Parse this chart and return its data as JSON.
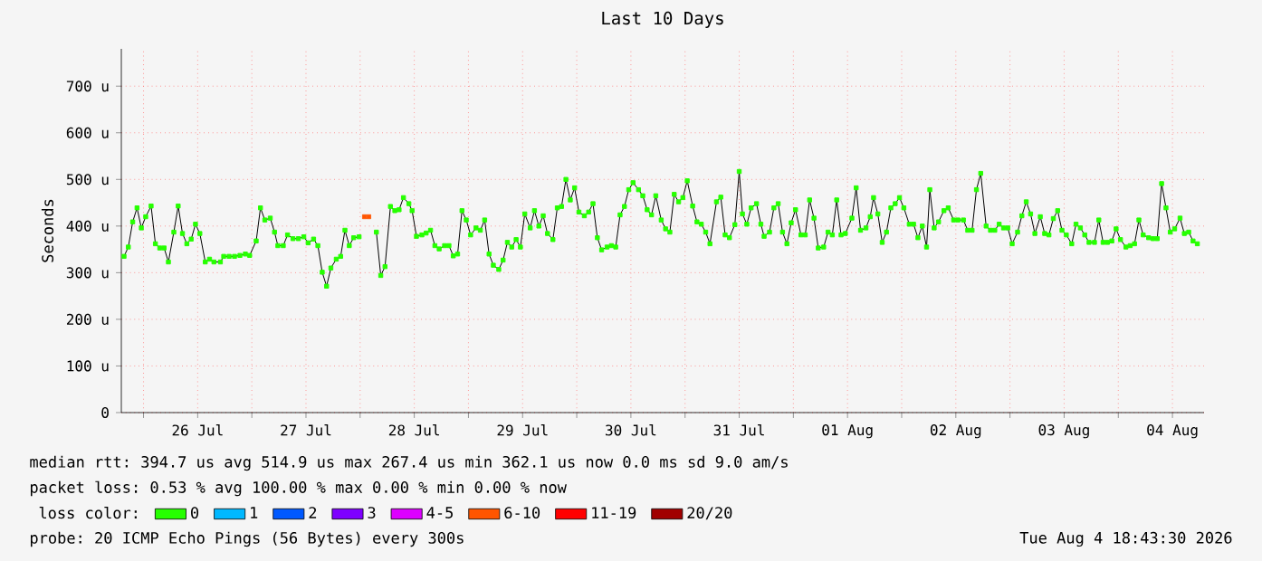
{
  "chart_data": {
    "type": "line",
    "title": "Last 10 Days",
    "ylabel": "Seconds",
    "xlim": [
      "2026-07-25T19:05",
      "2026-08-04T19:00"
    ],
    "ylim": [
      0,
      780
    ],
    "xticks": [
      {
        "value": "2026-07-26",
        "label": null
      },
      {
        "value": "2026-07-26T12:00",
        "label": "26 Jul"
      },
      {
        "value": "2026-07-27",
        "label": null
      },
      {
        "value": "2026-07-27T12:00",
        "label": "27 Jul"
      },
      {
        "value": "2026-07-28",
        "label": null
      },
      {
        "value": "2026-07-28T12:00",
        "label": "28 Jul"
      },
      {
        "value": "2026-07-29",
        "label": null
      },
      {
        "value": "2026-07-29T12:00",
        "label": "29 Jul"
      },
      {
        "value": "2026-07-30",
        "label": null
      },
      {
        "value": "2026-07-30T12:00",
        "label": "30 Jul"
      },
      {
        "value": "2026-07-31",
        "label": null
      },
      {
        "value": "2026-07-31T12:00",
        "label": "31 Jul"
      },
      {
        "value": "2026-08-01",
        "label": null
      },
      {
        "value": "2026-08-01T12:00",
        "label": "01 Aug"
      },
      {
        "value": "2026-08-02",
        "label": null
      },
      {
        "value": "2026-08-02T12:00",
        "label": "02 Aug"
      },
      {
        "value": "2026-08-03",
        "label": null
      },
      {
        "value": "2026-08-03T12:00",
        "label": "03 Aug"
      },
      {
        "value": "2026-08-04",
        "label": null
      },
      {
        "value": "2026-08-04T12:00",
        "label": "04 Aug"
      }
    ],
    "yticks": [
      0,
      {
        "value": 100,
        "label": "100 u"
      },
      {
        "value": 200,
        "label": "200 u"
      },
      {
        "value": 300,
        "label": "300 u"
      },
      {
        "value": 400,
        "label": "400 u"
      },
      {
        "value": 500,
        "label": "500 u"
      },
      {
        "value": 600,
        "label": "600 u"
      },
      {
        "value": 700,
        "label": "700 u"
      }
    ],
    "grid": true,
    "legend": "bottom",
    "legend_title": "loss color:",
    "marker": "square",
    "line_style": "solid",
    "series": [
      {
        "name": "0",
        "color": "#26ff00",
        "x": [
          "2026-07-25T19:41",
          "2026-07-25T20:38",
          "2026-07-25T21:36",
          "2026-07-25T22:34",
          "2026-07-25T23:31",
          "2026-07-26T00:29",
          "2026-07-26T01:41",
          "2026-07-26T02:38",
          "2026-07-26T03:36",
          "2026-07-26T04:34",
          "2026-07-26T05:31",
          "2026-07-26T06:43",
          "2026-07-26T07:41",
          "2026-07-26T08:38",
          "2026-07-26T09:36",
          "2026-07-26T10:34",
          "2026-07-26T11:31",
          "2026-07-26T12:29",
          "2026-07-26T13:41",
          "2026-07-26T14:38",
          "2026-07-26T15:36",
          "2026-07-26T17:02",
          "2026-07-26T17:46",
          "2026-07-26T18:58",
          "2026-07-26T20:10",
          "2026-07-26T21:22",
          "2026-07-26T22:34",
          "2026-07-26T23:31",
          "2026-07-27T00:58",
          "2026-07-27T01:55",
          "2026-07-27T02:53",
          "2026-07-27T04:05",
          "2026-07-27T05:02",
          "2026-07-27T05:46",
          "2026-07-27T06:58",
          "2026-07-27T07:55",
          "2026-07-27T09:07",
          "2026-07-27T10:19",
          "2026-07-27T11:31",
          "2026-07-27T12:29",
          "2026-07-27T13:41",
          "2026-07-27T14:38",
          "2026-07-27T15:36",
          "2026-07-27T16:34",
          "2026-07-27T17:31",
          "2026-07-27T18:43",
          "2026-07-27T19:41",
          "2026-07-27T20:38",
          "2026-07-27T21:36",
          "2026-07-27T22:34",
          "2026-07-27T23:46",
          "2026-07-28T00:58",
          "2026-07-28T01:55",
          "2026-07-28T03:36",
          "2026-07-28T04:34",
          "2026-07-28T05:31",
          "2026-07-28T06:43",
          "2026-07-28T07:41",
          "2026-07-28T08:38",
          "2026-07-28T09:36",
          "2026-07-28T10:48",
          "2026-07-28T11:31",
          "2026-07-28T12:29",
          "2026-07-28T13:41",
          "2026-07-28T14:38",
          "2026-07-28T15:36",
          "2026-07-28T16:34",
          "2026-07-28T17:31",
          "2026-07-28T18:43",
          "2026-07-28T19:41",
          "2026-07-28T20:38",
          "2026-07-28T21:36",
          "2026-07-28T22:34",
          "2026-07-28T23:31",
          "2026-07-29T00:29",
          "2026-07-29T01:41",
          "2026-07-29T02:38",
          "2026-07-29T03:36",
          "2026-07-29T04:34",
          "2026-07-29T05:31",
          "2026-07-29T06:43",
          "2026-07-29T07:41",
          "2026-07-29T08:38",
          "2026-07-29T09:36",
          "2026-07-29T10:34",
          "2026-07-29T11:31",
          "2026-07-29T12:29",
          "2026-07-29T13:41",
          "2026-07-29T14:38",
          "2026-07-29T15:36",
          "2026-07-29T16:34",
          "2026-07-29T17:31",
          "2026-07-29T18:43",
          "2026-07-29T19:41",
          "2026-07-29T20:38",
          "2026-07-29T21:36",
          "2026-07-29T22:34",
          "2026-07-29T23:31",
          "2026-07-30T00:29",
          "2026-07-30T01:41",
          "2026-07-30T02:38",
          "2026-07-30T03:36",
          "2026-07-30T04:34",
          "2026-07-30T05:31",
          "2026-07-30T06:43",
          "2026-07-30T07:41",
          "2026-07-30T08:38",
          "2026-07-30T09:36",
          "2026-07-30T10:34",
          "2026-07-30T11:31",
          "2026-07-30T12:29",
          "2026-07-30T13:41",
          "2026-07-30T14:38",
          "2026-07-30T15:36",
          "2026-07-30T16:34",
          "2026-07-30T17:31",
          "2026-07-30T18:43",
          "2026-07-30T19:41",
          "2026-07-30T20:38",
          "2026-07-30T21:36",
          "2026-07-30T22:34",
          "2026-07-30T23:31",
          "2026-07-31T00:29",
          "2026-07-31T01:41",
          "2026-07-31T02:38",
          "2026-07-31T03:36",
          "2026-07-31T04:34",
          "2026-07-31T05:31",
          "2026-07-31T06:58",
          "2026-07-31T07:55",
          "2026-07-31T08:53",
          "2026-07-31T09:50",
          "2026-07-31T11:02",
          "2026-07-31T12:00",
          "2026-07-31T12:43",
          "2026-07-31T13:41",
          "2026-07-31T14:38",
          "2026-07-31T15:50",
          "2026-07-31T16:48",
          "2026-07-31T17:31",
          "2026-07-31T18:43",
          "2026-07-31T19:41",
          "2026-07-31T20:38",
          "2026-07-31T21:36",
          "2026-07-31T22:34",
          "2026-07-31T23:31",
          "2026-08-01T00:29",
          "2026-08-01T01:41",
          "2026-08-01T02:38",
          "2026-08-01T03:36",
          "2026-08-01T04:34",
          "2026-08-01T05:31",
          "2026-08-01T06:43",
          "2026-08-01T07:41",
          "2026-08-01T08:38",
          "2026-08-01T09:36",
          "2026-08-01T10:34",
          "2026-08-01T11:31",
          "2026-08-01T12:58",
          "2026-08-01T13:55",
          "2026-08-01T14:53",
          "2026-08-01T16:05",
          "2026-08-01T17:02",
          "2026-08-01T17:46",
          "2026-08-01T18:43",
          "2026-08-01T19:41",
          "2026-08-01T20:38",
          "2026-08-01T21:36",
          "2026-08-01T22:34",
          "2026-08-01T23:31",
          "2026-08-02T00:29",
          "2026-08-02T01:41",
          "2026-08-02T02:38",
          "2026-08-02T03:36",
          "2026-08-02T04:34",
          "2026-08-02T05:31",
          "2026-08-02T06:14",
          "2026-08-02T07:12",
          "2026-08-02T08:10",
          "2026-08-02T09:22",
          "2026-08-02T10:19",
          "2026-08-02T11:31",
          "2026-08-02T12:29",
          "2026-08-02T13:41",
          "2026-08-02T14:38",
          "2026-08-02T15:36",
          "2026-08-02T16:34",
          "2026-08-02T17:31",
          "2026-08-02T18:43",
          "2026-08-02T19:41",
          "2026-08-02T20:38",
          "2026-08-02T21:36",
          "2026-08-02T22:34",
          "2026-08-02T23:31",
          "2026-08-03T00:29",
          "2026-08-03T01:41",
          "2026-08-03T02:38",
          "2026-08-03T03:36",
          "2026-08-03T04:34",
          "2026-08-03T05:31",
          "2026-08-03T06:43",
          "2026-08-03T07:41",
          "2026-08-03T08:38",
          "2026-08-03T09:36",
          "2026-08-03T10:34",
          "2026-08-03T11:31",
          "2026-08-03T12:29",
          "2026-08-03T13:41",
          "2026-08-03T14:38",
          "2026-08-03T15:36",
          "2026-08-03T16:34",
          "2026-08-03T17:31",
          "2026-08-03T18:43",
          "2026-08-03T19:41",
          "2026-08-03T20:38",
          "2026-08-03T21:36",
          "2026-08-03T22:34",
          "2026-08-03T23:31",
          "2026-08-04T00:29",
          "2026-08-04T01:41",
          "2026-08-04T02:38",
          "2026-08-04T03:36",
          "2026-08-04T04:34",
          "2026-08-04T05:31",
          "2026-08-04T06:43",
          "2026-08-04T07:41",
          "2026-08-04T08:38",
          "2026-08-04T09:36",
          "2026-08-04T10:34",
          "2026-08-04T11:31",
          "2026-08-04T12:29",
          "2026-08-04T13:41",
          "2026-08-04T14:38",
          "2026-08-04T15:36",
          "2026-08-04T16:34",
          "2026-08-04T17:31"
        ],
        "values": [
          335,
          355,
          409,
          439,
          396,
          420,
          443,
          362,
          353,
          353,
          323,
          387,
          443,
          384,
          362,
          372,
          404,
          384,
          323,
          329,
          323,
          323,
          335,
          335,
          335,
          337,
          340,
          337,
          368,
          439,
          413,
          417,
          387,
          358,
          358,
          381,
          373,
          373,
          377,
          364,
          372,
          358,
          301,
          271,
          310,
          329,
          335,
          391,
          358,
          375,
          377,
          null,
          null,
          387,
          294,
          313,
          442,
          433,
          435,
          461,
          448,
          433,
          378,
          381,
          385,
          391,
          358,
          351,
          358,
          358,
          336,
          340,
          433,
          413,
          381,
          396,
          391,
          413,
          340,
          316,
          307,
          327,
          365,
          355,
          371,
          355,
          426,
          396,
          433,
          400,
          422,
          384,
          371,
          439,
          442,
          500,
          456,
          482,
          430,
          422,
          430,
          448,
          375,
          349,
          355,
          358,
          355,
          424,
          442,
          478,
          493,
          478,
          465,
          435,
          424,
          465,
          413,
          394,
          387,
          468,
          452,
          461,
          497,
          443,
          409,
          404,
          387,
          362,
          452,
          462,
          381,
          375,
          403,
          517,
          426,
          404,
          439,
          448,
          404,
          378,
          387,
          439,
          448,
          387,
          362,
          407,
          435,
          381,
          381,
          456,
          417,
          353,
          355,
          387,
          381,
          456,
          381,
          384,
          417,
          482,
          391,
          396,
          420,
          461,
          426,
          365,
          387,
          439,
          448,
          461,
          439,
          404,
          404,
          375,
          400,
          355,
          478,
          396,
          409,
          433,
          439,
          413,
          413,
          413,
          391,
          391,
          478,
          513,
          400,
          391,
          391,
          404,
          396,
          396,
          362,
          387,
          422,
          452,
          426,
          384,
          420,
          384,
          381,
          416,
          433,
          391,
          381,
          362,
          404,
          396,
          381,
          365,
          365,
          413,
          365,
          365,
          368,
          394,
          371,
          355,
          358,
          362,
          413,
          381,
          375,
          373,
          373,
          491,
          439,
          387,
          394,
          417,
          384,
          387,
          368,
          362
        ]
      },
      {
        "name": "1",
        "color": "#00b8ff"
      },
      {
        "name": "2",
        "color": "#0059ff"
      },
      {
        "name": "3",
        "color": "#7e00ff"
      },
      {
        "name": "4-5",
        "color": "#dd00ff"
      },
      {
        "name": "6-10",
        "color": "#ff5500",
        "type": "scatter",
        "x": [
          "2026-07-28T00:58",
          "2026-07-28T01:55"
        ],
        "values": [
          420,
          420
        ]
      },
      {
        "name": "11-19",
        "color": "#ff0000"
      },
      {
        "name": "20/20",
        "color": "#a10000"
      }
    ],
    "annotations": [
      "median rtt:  394.7 us avg  514.9 us max  267.4 us min  362.1 us now  0.0 ms sd  9.0  am/s",
      "packet loss: 0.53 % avg  100.00 % max  0.00 % min  0.00 % now",
      "probe:       20 ICMP Echo Pings (56 Bytes) every 300s",
      "Tue Aug  4 18:43:30 2026"
    ]
  }
}
